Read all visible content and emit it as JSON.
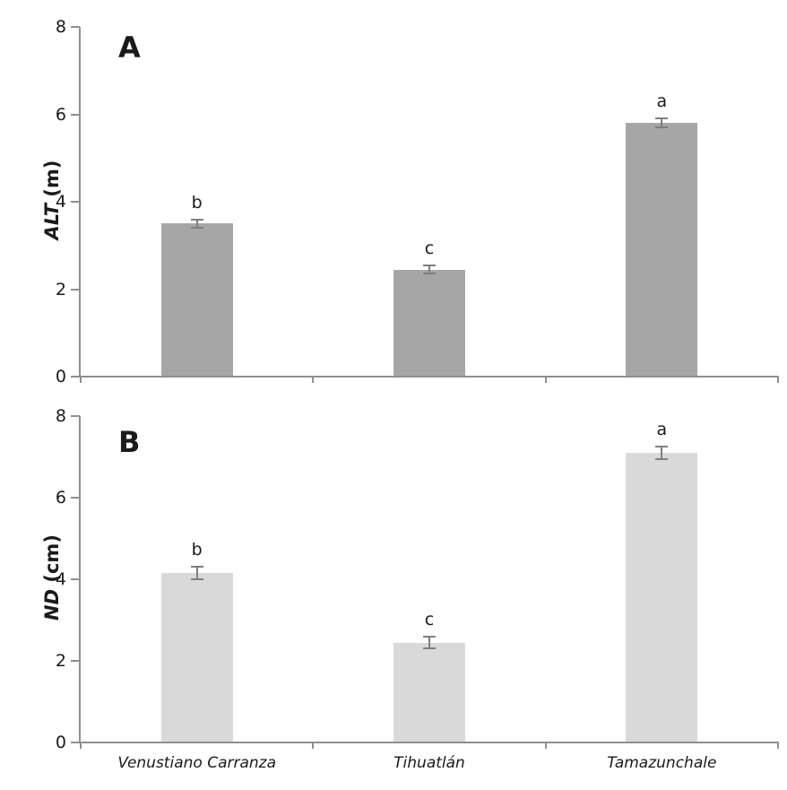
{
  "figure": {
    "background": "#ffffff",
    "axis_color": "#8f8f8f",
    "error_bar_color": "#7f7f7f",
    "text_color": "#1a1a1a"
  },
  "chart_data": [
    {
      "type": "bar",
      "panel": "A",
      "ylabel": "ALT (m)",
      "ylabel_var": "ALT",
      "ylabel_unit": " (m)",
      "categories": [
        "Venustiano Carranza",
        "Tihuatlán",
        "Tamazunchale"
      ],
      "values": [
        3.5,
        2.45,
        5.8
      ],
      "errors": [
        0.1,
        0.1,
        0.1
      ],
      "sig_letters": [
        "b",
        "c",
        "a"
      ],
      "ylim": [
        0,
        8
      ],
      "yticks": [
        0,
        2,
        4,
        6,
        8
      ],
      "bar_color": "#a6a6a6",
      "grid": "off",
      "legend": "none"
    },
    {
      "type": "bar",
      "panel": "B",
      "ylabel": "ND (cm)",
      "ylabel_var": "ND",
      "ylabel_unit": " (cm)",
      "categories": [
        "Venustiano Carranza",
        "Tihuatlán",
        "Tamazunchale"
      ],
      "values": [
        4.15,
        2.45,
        7.1
      ],
      "errors": [
        0.15,
        0.15,
        0.15
      ],
      "sig_letters": [
        "b",
        "c",
        "a"
      ],
      "ylim": [
        0,
        8
      ],
      "yticks": [
        0,
        2,
        4,
        6,
        8
      ],
      "bar_color": "#d9d9d9",
      "grid": "off",
      "legend": "none"
    }
  ]
}
